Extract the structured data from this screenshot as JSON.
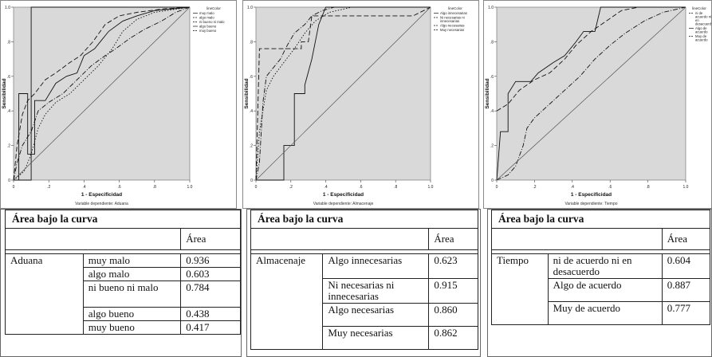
{
  "chart_data": [
    {
      "type": "line",
      "ylabel": "Sensibilidad",
      "xlabel": "1 - Especificidad",
      "caption": "Variable dependiente: Aduana",
      "legend_title": "lineColor",
      "xlim": [
        0,
        1
      ],
      "ylim": [
        0,
        1
      ],
      "ticks": [
        "0",
        ".2",
        ".4",
        ".6",
        ".8",
        "1.0"
      ],
      "series": [
        {
          "name": "muy malo",
          "style": "solid",
          "points": [
            [
              0,
              0
            ],
            [
              0.1,
              0
            ],
            [
              0.1,
              1
            ],
            [
              1,
              1
            ]
          ]
        },
        {
          "name": "algo malo",
          "style": "dash-dot",
          "points": [
            [
              0,
              0
            ],
            [
              0.02,
              0.1
            ],
            [
              0.05,
              0.2
            ],
            [
              0.08,
              0.25
            ],
            [
              0.1,
              0.28
            ],
            [
              0.14,
              0.4
            ],
            [
              0.2,
              0.45
            ],
            [
              0.28,
              0.5
            ],
            [
              0.36,
              0.58
            ],
            [
              0.44,
              0.66
            ],
            [
              0.52,
              0.72
            ],
            [
              0.58,
              0.76
            ],
            [
              0.66,
              0.82
            ],
            [
              0.74,
              0.87
            ],
            [
              0.84,
              0.92
            ],
            [
              0.92,
              0.97
            ],
            [
              1,
              1
            ]
          ]
        },
        {
          "name": "ni bueno ni malo",
          "style": "dashed",
          "points": [
            [
              0,
              0
            ],
            [
              0.02,
              0.2
            ],
            [
              0.05,
              0.38
            ],
            [
              0.08,
              0.46
            ],
            [
              0.12,
              0.5
            ],
            [
              0.18,
              0.58
            ],
            [
              0.24,
              0.62
            ],
            [
              0.32,
              0.68
            ],
            [
              0.38,
              0.72
            ],
            [
              0.45,
              0.8
            ],
            [
              0.52,
              0.9
            ],
            [
              0.6,
              0.95
            ],
            [
              0.7,
              0.97
            ],
            [
              0.85,
              0.99
            ],
            [
              1,
              1
            ]
          ]
        },
        {
          "name": "algo bueno",
          "style": "solid",
          "points": [
            [
              0,
              0
            ],
            [
              0.03,
              0
            ],
            [
              0.03,
              0.5
            ],
            [
              0.08,
              0.5
            ],
            [
              0.08,
              0.15
            ],
            [
              0.12,
              0.15
            ],
            [
              0.12,
              0.46
            ],
            [
              0.18,
              0.46
            ],
            [
              0.24,
              0.56
            ],
            [
              0.3,
              0.6
            ],
            [
              0.36,
              0.62
            ],
            [
              0.4,
              0.72
            ],
            [
              0.46,
              0.76
            ],
            [
              0.54,
              0.86
            ],
            [
              0.62,
              0.92
            ],
            [
              0.7,
              0.95
            ],
            [
              0.8,
              0.98
            ],
            [
              1,
              1
            ]
          ]
        },
        {
          "name": "muy bueno",
          "style": "dotted",
          "points": [
            [
              0,
              0
            ],
            [
              0.06,
              0.05
            ],
            [
              0.1,
              0.15
            ],
            [
              0.14,
              0.3
            ],
            [
              0.18,
              0.38
            ],
            [
              0.24,
              0.45
            ],
            [
              0.32,
              0.5
            ],
            [
              0.4,
              0.58
            ],
            [
              0.48,
              0.66
            ],
            [
              0.56,
              0.76
            ],
            [
              0.62,
              0.86
            ],
            [
              0.7,
              0.93
            ],
            [
              0.8,
              0.97
            ],
            [
              1,
              1
            ]
          ]
        },
        {
          "name": "",
          "style": "reference",
          "points": [
            [
              0,
              0
            ],
            [
              1,
              1
            ]
          ]
        }
      ]
    },
    {
      "type": "line",
      "ylabel": "Sensibilidad",
      "xlabel": "1 - Especificidad",
      "caption": "Variable dependiente: Almacenaje",
      "legend_title": "lineColor",
      "xlim": [
        0,
        1
      ],
      "ylim": [
        0,
        1
      ],
      "ticks": [
        "0",
        ".2",
        ".4",
        ".6",
        ".8",
        "1.0"
      ],
      "series": [
        {
          "name": "Algo innecesarias",
          "style": "solid",
          "points": [
            [
              0,
              0
            ],
            [
              0.16,
              0
            ],
            [
              0.16,
              0.2
            ],
            [
              0.22,
              0.2
            ],
            [
              0.22,
              0.5
            ],
            [
              0.28,
              0.5
            ],
            [
              0.28,
              0.55
            ],
            [
              0.32,
              0.7
            ],
            [
              0.36,
              0.9
            ],
            [
              0.4,
              1
            ],
            [
              1,
              1
            ]
          ]
        },
        {
          "name": "Ni necesarias ni innecesarias",
          "style": "dash-dot",
          "points": [
            [
              0,
              0
            ],
            [
              0.02,
              0.1
            ],
            [
              0.04,
              0.45
            ],
            [
              0.06,
              0.6
            ],
            [
              0.1,
              0.65
            ],
            [
              0.14,
              0.7
            ],
            [
              0.18,
              0.78
            ],
            [
              0.22,
              0.85
            ],
            [
              0.28,
              0.9
            ],
            [
              0.32,
              0.95
            ],
            [
              0.38,
              0.98
            ],
            [
              0.45,
              1
            ],
            [
              1,
              1
            ]
          ]
        },
        {
          "name": "Algo necesarias",
          "style": "dashed",
          "points": [
            [
              0,
              0
            ],
            [
              0.02,
              0.76
            ],
            [
              0.26,
              0.76
            ],
            [
              0.26,
              0.8
            ],
            [
              0.3,
              0.8
            ],
            [
              0.32,
              0.95
            ],
            [
              0.9,
              0.95
            ],
            [
              1,
              1
            ]
          ]
        },
        {
          "name": "Muy necesarias",
          "style": "dotted",
          "points": [
            [
              0,
              0
            ],
            [
              0.02,
              0.28
            ],
            [
              0.06,
              0.52
            ],
            [
              0.1,
              0.6
            ],
            [
              0.16,
              0.68
            ],
            [
              0.22,
              0.76
            ],
            [
              0.28,
              0.85
            ],
            [
              0.34,
              0.92
            ],
            [
              0.42,
              0.97
            ],
            [
              0.55,
              1
            ],
            [
              1,
              1
            ]
          ]
        },
        {
          "name": "",
          "style": "reference",
          "points": [
            [
              0,
              0
            ],
            [
              1,
              1
            ]
          ]
        }
      ]
    },
    {
      "type": "line",
      "ylabel": "Sensibilidad",
      "xlabel": "1 - Especificidad",
      "caption": "Variable dependiente: Tiempo",
      "legend_title": "lineColor",
      "xlim": [
        0,
        1
      ],
      "ylim": [
        0,
        1
      ],
      "ticks": [
        "0",
        ".2",
        ".4",
        ".6",
        ".8",
        "1.0"
      ],
      "series": [
        {
          "name": "ni de acuerdo ni en desacuerdo",
          "style": "dash-dot",
          "points": [
            [
              0,
              0
            ],
            [
              0.06,
              0.03
            ],
            [
              0.1,
              0.08
            ],
            [
              0.14,
              0.2
            ],
            [
              0.16,
              0.3
            ],
            [
              0.2,
              0.36
            ],
            [
              0.28,
              0.44
            ],
            [
              0.36,
              0.52
            ],
            [
              0.44,
              0.6
            ],
            [
              0.52,
              0.7
            ],
            [
              0.6,
              0.78
            ],
            [
              0.68,
              0.85
            ],
            [
              0.78,
              0.92
            ],
            [
              0.88,
              0.97
            ],
            [
              1,
              1
            ]
          ]
        },
        {
          "name": "Algo de acuerdo",
          "style": "solid",
          "points": [
            [
              0,
              0
            ],
            [
              0.02,
              0.28
            ],
            [
              0.06,
              0.28
            ],
            [
              0.06,
              0.5
            ],
            [
              0.1,
              0.57
            ],
            [
              0.18,
              0.57
            ],
            [
              0.22,
              0.62
            ],
            [
              0.3,
              0.68
            ],
            [
              0.36,
              0.72
            ],
            [
              0.42,
              0.8
            ],
            [
              0.46,
              0.86
            ],
            [
              0.52,
              0.86
            ],
            [
              0.55,
              1
            ],
            [
              1,
              1
            ]
          ]
        },
        {
          "name": "Muy de acuerdo",
          "style": "dashed",
          "points": [
            [
              0,
              0.4
            ],
            [
              0.06,
              0.44
            ],
            [
              0.12,
              0.52
            ],
            [
              0.2,
              0.58
            ],
            [
              0.28,
              0.62
            ],
            [
              0.36,
              0.7
            ],
            [
              0.42,
              0.78
            ],
            [
              0.5,
              0.86
            ],
            [
              0.58,
              0.92
            ],
            [
              0.66,
              0.98
            ],
            [
              0.75,
              1
            ],
            [
              1,
              1
            ]
          ]
        },
        {
          "name": "",
          "style": "reference",
          "points": [
            [
              0,
              0
            ],
            [
              1,
              1
            ]
          ]
        }
      ]
    }
  ],
  "tables": [
    {
      "title": "Área bajo la curva",
      "header": "Área",
      "variable": "Aduana",
      "rows": [
        {
          "label": "muy malo",
          "value": "0.936"
        },
        {
          "label": "algo malo",
          "value": "0.603"
        },
        {
          "label": "ni bueno ni malo",
          "value": "0.784"
        },
        {
          "label": "algo bueno",
          "value": "0.438"
        },
        {
          "label": "muy bueno",
          "value": "0.417"
        }
      ]
    },
    {
      "title": "Área bajo la curva",
      "header": "Área",
      "variable": "Almacenaje",
      "rows": [
        {
          "label": "Algo innecesarias",
          "value": "0.623"
        },
        {
          "label": "Ni necesarias ni innecesarias",
          "value": "0.915"
        },
        {
          "label": "Algo necesarias",
          "value": "0.860"
        },
        {
          "label": "Muy necesarias",
          "value": "0.862"
        }
      ]
    },
    {
      "title": "Área bajo la curva",
      "header": "Área",
      "variable": "Tiempo",
      "rows": [
        {
          "label": "ni de acuerdo ni en desacuerdo",
          "value": "0.604"
        },
        {
          "label": "Algo de acuerdo",
          "value": "0.887"
        },
        {
          "label": "Muy de acuerdo",
          "value": "0.777"
        }
      ]
    }
  ]
}
